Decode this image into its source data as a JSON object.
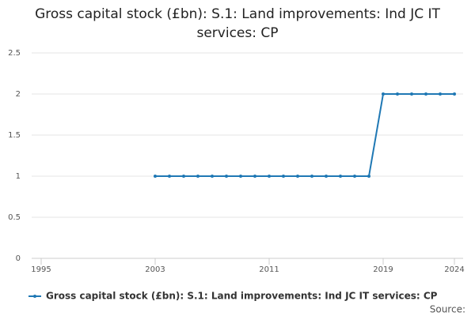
{
  "chart_data": {
    "type": "line",
    "title": "Gross capital stock (£bn): S.1: Land improvements: Ind JC IT services: CP",
    "x": [
      2003,
      2004,
      2005,
      2006,
      2007,
      2008,
      2009,
      2010,
      2011,
      2012,
      2013,
      2014,
      2015,
      2016,
      2017,
      2018,
      2019,
      2020,
      2021,
      2022,
      2023,
      2024
    ],
    "series": [
      {
        "name": "Gross capital stock (£bn): S.1: Land improvements: Ind JC IT services: CP",
        "color": "#1f78b4",
        "values": [
          1,
          1,
          1,
          1,
          1,
          1,
          1,
          1,
          1,
          1,
          1,
          1,
          1,
          1,
          1,
          1,
          2,
          2,
          2,
          2,
          2,
          2
        ]
      }
    ],
    "xlim": [
      1995,
      2024
    ],
    "xticks": [
      1995,
      2003,
      2011,
      2019,
      2024
    ],
    "ylim": [
      0,
      2.5
    ],
    "yticks": [
      0,
      0.5,
      1,
      1.5,
      2,
      2.5
    ],
    "grid": true,
    "source": "Source:"
  }
}
